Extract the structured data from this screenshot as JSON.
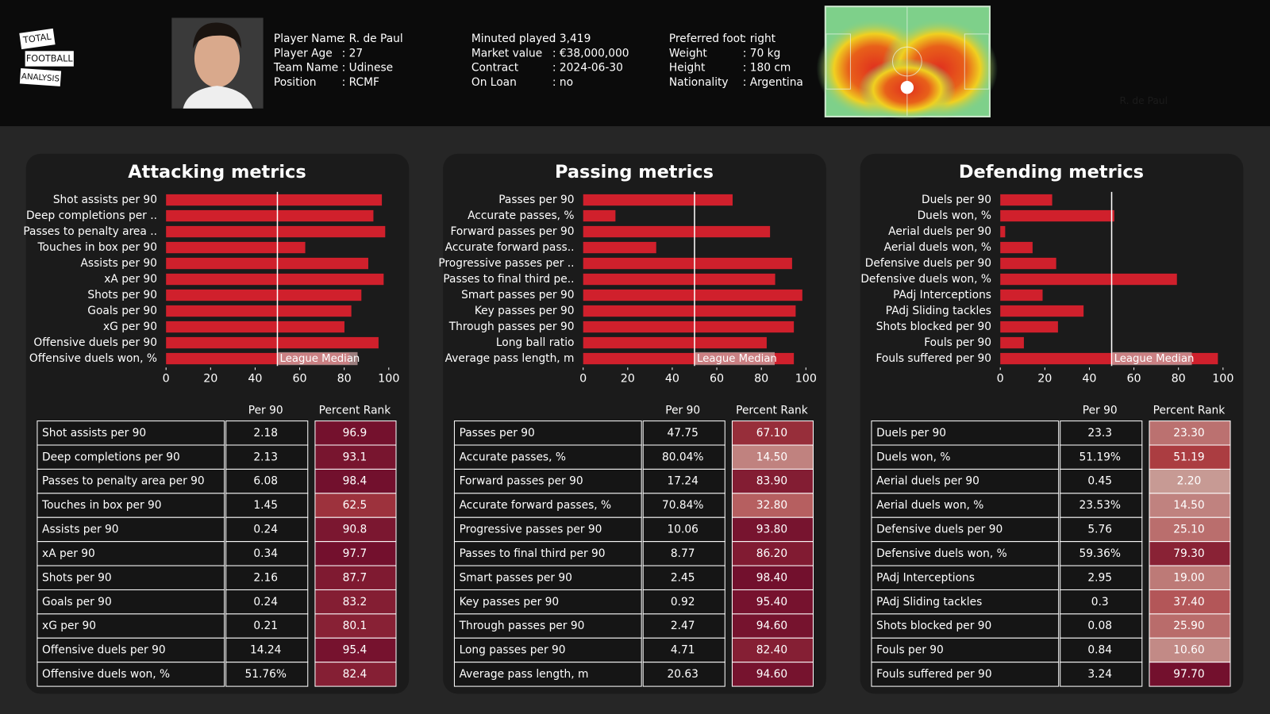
{
  "header": {
    "logo": [
      "TOTAL",
      "FOOTBALL",
      "ANALYSIS"
    ],
    "info": [
      [
        {
          "label": "Player Name",
          "value": ": R. de Paul"
        },
        {
          "label": "Player Age",
          "value": ": 27"
        },
        {
          "label": "Team Name",
          "value": ": Udinese"
        },
        {
          "label": "Position",
          "value": ": RCMF"
        }
      ],
      [
        {
          "label": "Minuted played",
          "value": ": 3,419"
        },
        {
          "label": "Market value",
          "value": ": €38,000,000"
        },
        {
          "label": "Contract",
          "value": ": 2024-06-30"
        },
        {
          "label": "On Loan",
          "value": ": no"
        }
      ],
      [
        {
          "label": "Preferred foot",
          "value": ": right"
        },
        {
          "label": "Weight",
          "value": ": 70 kg"
        },
        {
          "label": "Height",
          "value": ": 180 cm"
        },
        {
          "label": "Nationality",
          "value": ": Argentina"
        }
      ]
    ],
    "heatmap_label": "R. de Paul"
  },
  "chart_data": [
    {
      "type": "bar",
      "title": "Attacking metrics",
      "categories": [
        "Shot assists per 90",
        "Deep completions per ..",
        "Passes to penalty area ..",
        "Touches in box per 90",
        "Assists per 90",
        "xA per 90",
        "Shots per 90",
        "Goals per 90",
        "xG per 90",
        "Offensive duels per 90",
        "Offensive duels won, %"
      ],
      "values": [
        96.9,
        93.1,
        98.4,
        62.5,
        90.8,
        97.7,
        87.7,
        83.2,
        80.1,
        95.4,
        82.4
      ],
      "color": "#d0202c",
      "xlim": [
        0,
        100
      ],
      "xticks": [
        0,
        20,
        40,
        60,
        80,
        100
      ],
      "median": 50,
      "median_label": "League Median"
    },
    {
      "type": "bar",
      "title": "Passing metrics",
      "categories": [
        "Passes per 90",
        "Accurate passes, %",
        "Forward passes per 90",
        "Accurate forward pass..",
        "Progressive passes per ..",
        "Passes to final third pe..",
        "Smart passes per 90",
        "Key passes per 90",
        "Through passes per 90",
        "Long ball ratio",
        "Average pass length, m"
      ],
      "values": [
        67.1,
        14.5,
        83.9,
        32.8,
        93.8,
        86.2,
        98.4,
        95.4,
        94.6,
        82.4,
        94.6
      ],
      "color": "#d0202c",
      "xlim": [
        0,
        100
      ],
      "xticks": [
        0,
        20,
        40,
        60,
        80,
        100
      ],
      "median": 50,
      "median_label": "League Median"
    },
    {
      "type": "bar",
      "title": "Defending metrics",
      "categories": [
        "Duels per 90",
        "Duels won, %",
        "Aerial duels per 90",
        "Aerial duels won, %",
        "Defensive duels per 90",
        "Defensive duels won, %",
        "PAdj Interceptions",
        "PAdj Sliding tackles",
        "Shots blocked per 90",
        "Fouls per 90",
        "Fouls suffered per 90"
      ],
      "values": [
        23.3,
        51.19,
        2.2,
        14.5,
        25.1,
        79.3,
        19.0,
        37.4,
        25.9,
        10.6,
        97.7
      ],
      "color": "#d0202c",
      "xlim": [
        0,
        100
      ],
      "xticks": [
        0,
        20,
        40,
        60,
        80,
        100
      ],
      "median": 50,
      "median_label": "League Median"
    }
  ],
  "tables": [
    {
      "columns": [
        "Per 90",
        "Percent Rank"
      ],
      "rows": [
        [
          "Shot assists per 90",
          "2.18",
          "96.9"
        ],
        [
          "Deep completions per 90",
          "2.13",
          "93.1"
        ],
        [
          "Passes to penalty area per 90",
          "6.08",
          "98.4"
        ],
        [
          "Touches in box per 90",
          "1.45",
          "62.5"
        ],
        [
          "Assists per 90",
          "0.24",
          "90.8"
        ],
        [
          "xA per 90",
          "0.34",
          "97.7"
        ],
        [
          "Shots per 90",
          "2.16",
          "87.7"
        ],
        [
          "Goals per 90",
          "0.24",
          "83.2"
        ],
        [
          "xG per 90",
          "0.21",
          "80.1"
        ],
        [
          "Offensive duels per 90",
          "14.24",
          "95.4"
        ],
        [
          "Offensive duels won, %",
          "51.76%",
          "82.4"
        ]
      ]
    },
    {
      "columns": [
        "Per 90",
        "Percent Rank"
      ],
      "rows": [
        [
          "Passes per 90",
          "47.75",
          "67.10"
        ],
        [
          "Accurate passes, %",
          "80.04%",
          "14.50"
        ],
        [
          "Forward passes per 90",
          "17.24",
          "83.90"
        ],
        [
          "Accurate forward passes, %",
          "70.84%",
          "32.80"
        ],
        [
          "Progressive passes per 90",
          "10.06",
          "93.80"
        ],
        [
          "Passes to final third per 90",
          "8.77",
          "86.20"
        ],
        [
          "Smart passes per 90",
          "2.45",
          "98.40"
        ],
        [
          "Key passes per 90",
          "0.92",
          "95.40"
        ],
        [
          "Through passes per 90",
          "2.47",
          "94.60"
        ],
        [
          "Long passes per 90",
          "4.71",
          "82.40"
        ],
        [
          "Average pass length, m",
          "20.63",
          "94.60"
        ]
      ]
    },
    {
      "columns": [
        "Per 90",
        "Percent Rank"
      ],
      "rows": [
        [
          "Duels per 90",
          "23.3",
          "23.30"
        ],
        [
          "Duels won, %",
          "51.19%",
          "51.19"
        ],
        [
          "Aerial duels per 90",
          "0.45",
          "2.20"
        ],
        [
          "Aerial duels won, %",
          "23.53%",
          "14.50"
        ],
        [
          "Defensive duels per 90",
          "5.76",
          "25.10"
        ],
        [
          "Defensive duels won, %",
          "59.36%",
          "79.30"
        ],
        [
          "PAdj Interceptions",
          "2.95",
          "19.00"
        ],
        [
          "PAdj Sliding tackles",
          "0.3",
          "37.40"
        ],
        [
          "Shots blocked per 90",
          "0.08",
          "25.90"
        ],
        [
          "Fouls per 90",
          "0.84",
          "10.60"
        ],
        [
          "Fouls suffered per 90",
          "3.24",
          "97.70"
        ]
      ]
    }
  ]
}
